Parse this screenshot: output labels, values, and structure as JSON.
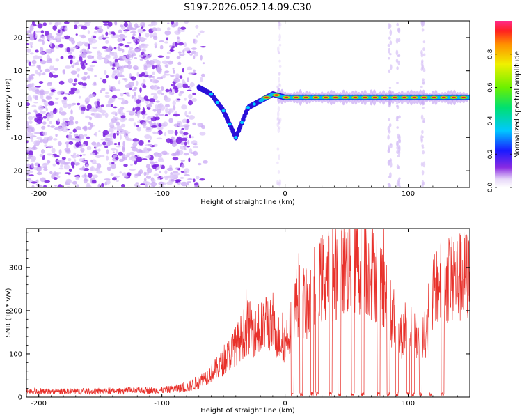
{
  "title": "S197.2026.052.14.09.C30",
  "chart_data": [
    {
      "type": "heatmap",
      "title": "S197.2026.052.14.09.C30",
      "xlabel": "Height of straight line (km)",
      "ylabel": "Frequency (Hz)",
      "xlim": [
        -210,
        150
      ],
      "ylim": [
        -25,
        25
      ],
      "xticks": [
        -200,
        -100,
        0,
        100
      ],
      "yticks": [
        -20,
        -10,
        0,
        10,
        20
      ],
      "colorbar": {
        "label": "Normalized spectral amplitude",
        "range": [
          0,
          1
        ],
        "ticks": [
          "0.0",
          "0.2",
          "0.4",
          "0.6",
          "0.8"
        ]
      },
      "ridge": {
        "x": [
          -70,
          -60,
          -50,
          -40,
          -30,
          -20,
          -10,
          0,
          20,
          40,
          60,
          80,
          100,
          120,
          140,
          150
        ],
        "freq": [
          5,
          3,
          -2,
          -10,
          -1,
          1,
          3,
          2,
          2,
          2,
          2,
          2,
          2,
          2,
          2,
          2
        ]
      },
      "noise_region_x": [
        -210,
        -70
      ]
    },
    {
      "type": "line",
      "xlabel": "Height of straight line (km)",
      "ylabel": "SNR (10 * v/v)",
      "xlim": [
        -210,
        150
      ],
      "ylim": [
        0,
        390
      ],
      "xticks": [
        -200,
        -100,
        0,
        100
      ],
      "yticks": [
        0,
        100,
        200,
        300
      ],
      "series": [
        {
          "name": "SNR",
          "color": "#e8312b",
          "envelope": {
            "x": [
              -210,
              -150,
              -100,
              -80,
              -70,
              -60,
              -50,
              -40,
              -30,
              -20,
              -15,
              -10,
              -5,
              0,
              10,
              20,
              30,
              40,
              50,
              60,
              70,
              80,
              90,
              100,
              110,
              115,
              120,
              125,
              130,
              140,
              150
            ],
            "y": [
              15,
              15,
              18,
              25,
              40,
              60,
              90,
              130,
              180,
              150,
              200,
              170,
              150,
              140,
              250,
              230,
              300,
              320,
              330,
              340,
              320,
              290,
              160,
              160,
              150,
              160,
              250,
              290,
              300,
              300,
              310
            ]
          },
          "dropouts_x": [
            6,
            13,
            22,
            26,
            37,
            44,
            55,
            63,
            76,
            84,
            91,
            100,
            104,
            110,
            118,
            128
          ]
        }
      ]
    }
  ]
}
